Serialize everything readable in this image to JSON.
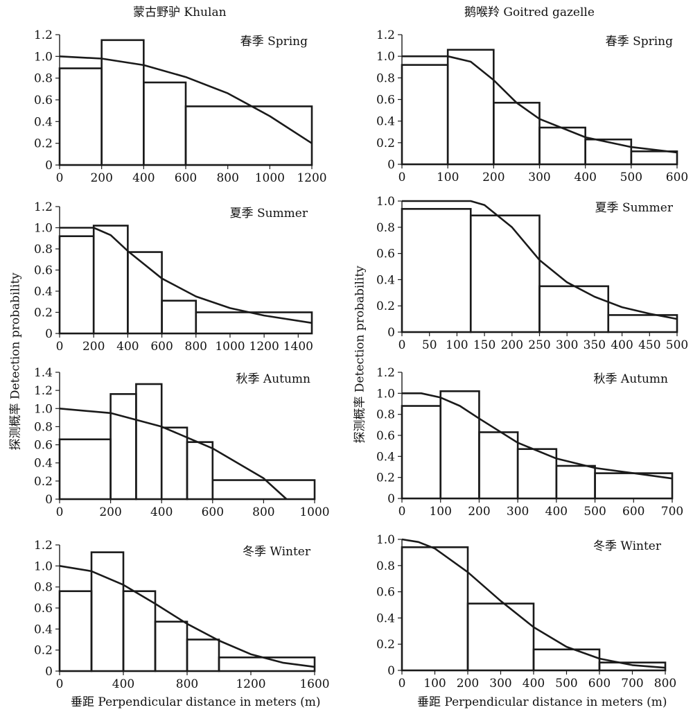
{
  "figure": {
    "columns": [
      {
        "title": "蒙古野驴 Khulan"
      },
      {
        "title": "鹅喉羚 Goitred gazelle"
      }
    ],
    "ylabel": "探测概率  Detection probability",
    "xlabel": "垂距 Perpendicular distance in meters (m)"
  },
  "chart_data": [
    {
      "type": "bar",
      "species": "蒙古野驴 Khulan",
      "season": "春季 Spring",
      "xlim": [
        0,
        1200
      ],
      "ylim": [
        0,
        1.2
      ],
      "xticks": [
        0,
        200,
        400,
        600,
        800,
        1000,
        1200
      ],
      "yticks": [
        0,
        0.2,
        0.4,
        0.6,
        0.8,
        1.0,
        1.2
      ],
      "ytick_labels": [
        "0",
        "0.2",
        "0.4",
        "0.6",
        "0.8",
        "1.0",
        "1.2"
      ],
      "bins": [
        [
          0,
          200,
          0.89
        ],
        [
          200,
          400,
          1.15
        ],
        [
          400,
          600,
          0.76
        ],
        [
          600,
          1200,
          0.54
        ]
      ],
      "curve": [
        [
          0,
          1.0
        ],
        [
          200,
          0.98
        ],
        [
          400,
          0.92
        ],
        [
          600,
          0.81
        ],
        [
          800,
          0.66
        ],
        [
          1000,
          0.45
        ],
        [
          1200,
          0.2
        ]
      ]
    },
    {
      "type": "bar",
      "species": "鹅喉羚 Goitred gazelle",
      "season": "春季 Spring",
      "xlim": [
        0,
        600
      ],
      "ylim": [
        0,
        1.2
      ],
      "xticks": [
        0,
        100,
        200,
        300,
        400,
        500,
        600
      ],
      "yticks": [
        0,
        0.2,
        0.4,
        0.6,
        0.8,
        1.0,
        1.2
      ],
      "ytick_labels": [
        "0",
        "0.2",
        "0.4",
        "0.6",
        "0.8",
        "1.0",
        "1.2"
      ],
      "bins": [
        [
          0,
          100,
          0.92
        ],
        [
          100,
          200,
          1.06
        ],
        [
          200,
          300,
          0.57
        ],
        [
          300,
          400,
          0.34
        ],
        [
          400,
          500,
          0.23
        ],
        [
          500,
          600,
          0.12
        ]
      ],
      "curve": [
        [
          0,
          1.0
        ],
        [
          100,
          1.0
        ],
        [
          150,
          0.95
        ],
        [
          200,
          0.78
        ],
        [
          250,
          0.57
        ],
        [
          300,
          0.42
        ],
        [
          400,
          0.25
        ],
        [
          500,
          0.16
        ],
        [
          600,
          0.11
        ]
      ]
    },
    {
      "type": "bar",
      "species": "蒙古野驴 Khulan",
      "season": "夏季 Summer",
      "xlim": [
        0,
        1480
      ],
      "ylim": [
        0,
        1.2
      ],
      "xticks": [
        0,
        200,
        400,
        600,
        800,
        1000,
        1200,
        1400
      ],
      "yticks": [
        0,
        0.2,
        0.4,
        0.6,
        0.8,
        1.0,
        1.2
      ],
      "ytick_labels": [
        "0",
        "0.2",
        "0.4",
        "0.6",
        "0.8",
        "1.0",
        "1.2"
      ],
      "bins": [
        [
          0,
          200,
          0.92
        ],
        [
          200,
          400,
          1.02
        ],
        [
          400,
          600,
          0.77
        ],
        [
          600,
          800,
          0.31
        ],
        [
          800,
          1480,
          0.2
        ]
      ],
      "curve": [
        [
          0,
          1.0
        ],
        [
          200,
          1.0
        ],
        [
          300,
          0.93
        ],
        [
          400,
          0.78
        ],
        [
          600,
          0.52
        ],
        [
          800,
          0.35
        ],
        [
          1000,
          0.24
        ],
        [
          1200,
          0.17
        ],
        [
          1480,
          0.1
        ]
      ]
    },
    {
      "type": "bar",
      "species": "鹅喉羚 Goitred gazelle",
      "season": "夏季 Summer",
      "xlim": [
        0,
        500
      ],
      "ylim": [
        0,
        1.0
      ],
      "xticks": [
        0,
        50,
        100,
        150,
        200,
        250,
        300,
        350,
        400,
        450,
        500
      ],
      "yticks": [
        0,
        0.2,
        0.4,
        0.6,
        0.8,
        1.0
      ],
      "ytick_labels": [
        "0",
        "0.2",
        "0.4",
        "0.6",
        "0.8",
        "1.0"
      ],
      "bins": [
        [
          0,
          125,
          0.94
        ],
        [
          125,
          250,
          0.89
        ],
        [
          250,
          375,
          0.35
        ],
        [
          375,
          500,
          0.13
        ]
      ],
      "curve": [
        [
          0,
          1.0
        ],
        [
          125,
          1.0
        ],
        [
          150,
          0.97
        ],
        [
          200,
          0.8
        ],
        [
          250,
          0.55
        ],
        [
          300,
          0.38
        ],
        [
          350,
          0.27
        ],
        [
          400,
          0.19
        ],
        [
          450,
          0.14
        ],
        [
          500,
          0.1
        ]
      ]
    },
    {
      "type": "bar",
      "species": "蒙古野驴 Khulan",
      "season": "秋季 Autumn",
      "xlim": [
        0,
        1000
      ],
      "ylim": [
        0,
        1.4
      ],
      "xticks": [
        0,
        200,
        400,
        600,
        800,
        1000
      ],
      "yticks": [
        0,
        0.2,
        0.4,
        0.6,
        0.8,
        1.0,
        1.2,
        1.4
      ],
      "ytick_labels": [
        "0",
        "0.2",
        "0.4",
        "0.6",
        "0.8",
        "1.0",
        "1.2",
        "1.4"
      ],
      "bins": [
        [
          0,
          200,
          0.66
        ],
        [
          200,
          300,
          1.16
        ],
        [
          300,
          400,
          1.27
        ],
        [
          400,
          500,
          0.79
        ],
        [
          500,
          600,
          0.63
        ],
        [
          600,
          1000,
          0.21
        ]
      ],
      "curve": [
        [
          0,
          1.0
        ],
        [
          200,
          0.95
        ],
        [
          400,
          0.8
        ],
        [
          600,
          0.56
        ],
        [
          800,
          0.23
        ],
        [
          890,
          0.0
        ]
      ]
    },
    {
      "type": "bar",
      "species": "鹅喉羚 Goitred gazelle",
      "season": "秋季 Autumn",
      "xlim": [
        0,
        700
      ],
      "ylim": [
        0,
        1.2
      ],
      "xticks": [
        0,
        100,
        200,
        300,
        400,
        500,
        600,
        700
      ],
      "yticks": [
        0,
        0.2,
        0.4,
        0.6,
        0.8,
        1.0,
        1.2
      ],
      "ytick_labels": [
        "0",
        "0.2",
        "0.4",
        "0.6",
        "0.8",
        "1.0",
        "1.2"
      ],
      "bins": [
        [
          0,
          100,
          0.88
        ],
        [
          100,
          200,
          1.02
        ],
        [
          200,
          300,
          0.63
        ],
        [
          300,
          400,
          0.47
        ],
        [
          400,
          500,
          0.31
        ],
        [
          500,
          700,
          0.24
        ]
      ],
      "curve": [
        [
          0,
          1.0
        ],
        [
          50,
          1.0
        ],
        [
          100,
          0.96
        ],
        [
          150,
          0.88
        ],
        [
          200,
          0.76
        ],
        [
          300,
          0.53
        ],
        [
          400,
          0.38
        ],
        [
          500,
          0.29
        ],
        [
          600,
          0.24
        ],
        [
          700,
          0.19
        ]
      ]
    },
    {
      "type": "bar",
      "species": "蒙古野驴 Khulan",
      "season": "冬季 Winter",
      "xlim": [
        0,
        1600
      ],
      "ylim": [
        0,
        1.2
      ],
      "xticks": [
        0,
        400,
        800,
        1200,
        1600
      ],
      "yticks": [
        0,
        0.2,
        0.4,
        0.6,
        0.8,
        1.0,
        1.2
      ],
      "ytick_labels": [
        "0",
        "0.2",
        "0.4",
        "0.6",
        "0.8",
        "1.0",
        "1.2"
      ],
      "bins": [
        [
          0,
          200,
          0.76
        ],
        [
          200,
          400,
          1.13
        ],
        [
          400,
          600,
          0.76
        ],
        [
          600,
          800,
          0.47
        ],
        [
          800,
          1000,
          0.3
        ],
        [
          1000,
          1600,
          0.13
        ]
      ],
      "curve": [
        [
          0,
          1.0
        ],
        [
          200,
          0.95
        ],
        [
          400,
          0.82
        ],
        [
          600,
          0.64
        ],
        [
          800,
          0.45
        ],
        [
          1000,
          0.29
        ],
        [
          1200,
          0.16
        ],
        [
          1400,
          0.08
        ],
        [
          1600,
          0.04
        ]
      ]
    },
    {
      "type": "bar",
      "species": "鹅喉羚 Goitred gazelle",
      "season": "冬季 Winter",
      "xlim": [
        0,
        800
      ],
      "ylim": [
        0,
        1.0
      ],
      "xticks": [
        0,
        100,
        200,
        300,
        400,
        500,
        600,
        700,
        800
      ],
      "yticks": [
        0,
        0.2,
        0.4,
        0.6,
        0.8,
        1.0
      ],
      "ytick_labels": [
        "0",
        "0.2",
        "0.4",
        "0.6",
        "0.8",
        "1.0"
      ],
      "bins": [
        [
          0,
          200,
          0.94
        ],
        [
          200,
          400,
          0.51
        ],
        [
          400,
          600,
          0.16
        ],
        [
          600,
          800,
          0.06
        ]
      ],
      "curve": [
        [
          0,
          1.0
        ],
        [
          50,
          0.98
        ],
        [
          100,
          0.93
        ],
        [
          200,
          0.75
        ],
        [
          300,
          0.53
        ],
        [
          400,
          0.33
        ],
        [
          500,
          0.18
        ],
        [
          600,
          0.09
        ],
        [
          700,
          0.04
        ],
        [
          800,
          0.02
        ]
      ]
    }
  ]
}
